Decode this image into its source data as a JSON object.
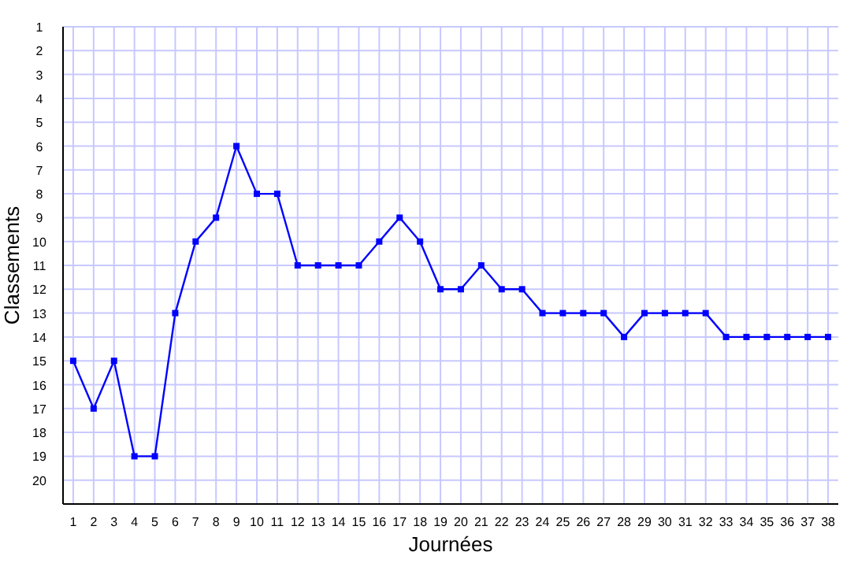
{
  "chart_data": {
    "type": "line",
    "xlabel": "Journées",
    "ylabel": "Classements",
    "x": [
      1,
      2,
      3,
      4,
      5,
      6,
      7,
      8,
      9,
      10,
      11,
      12,
      13,
      14,
      15,
      16,
      17,
      18,
      19,
      20,
      21,
      22,
      23,
      24,
      25,
      26,
      27,
      28,
      29,
      30,
      31,
      32,
      33,
      34,
      35,
      36,
      37,
      38
    ],
    "series": [
      {
        "color": "#0000ff",
        "values": [
          15,
          17,
          15,
          19,
          19,
          13,
          10,
          9,
          6,
          8,
          8,
          11,
          11,
          11,
          11,
          10,
          9,
          10,
          12,
          12,
          11,
          12,
          12,
          13,
          13,
          13,
          13,
          14,
          13,
          13,
          13,
          13,
          14,
          14,
          14,
          14,
          14,
          14
        ]
      }
    ],
    "xlim": [
      0.5,
      38.5
    ],
    "xticks": [
      1,
      2,
      3,
      4,
      5,
      6,
      7,
      8,
      9,
      10,
      11,
      12,
      13,
      14,
      15,
      16,
      17,
      18,
      19,
      20,
      21,
      22,
      23,
      24,
      25,
      26,
      27,
      28,
      29,
      30,
      31,
      32,
      33,
      34,
      35,
      36,
      37,
      38
    ],
    "ylim": [
      21,
      1
    ],
    "yticks": [
      1,
      2,
      3,
      4,
      5,
      6,
      7,
      8,
      9,
      10,
      11,
      12,
      13,
      14,
      15,
      16,
      17,
      18,
      19,
      20
    ],
    "grid": true,
    "marker": "square",
    "line_style": "solid"
  }
}
